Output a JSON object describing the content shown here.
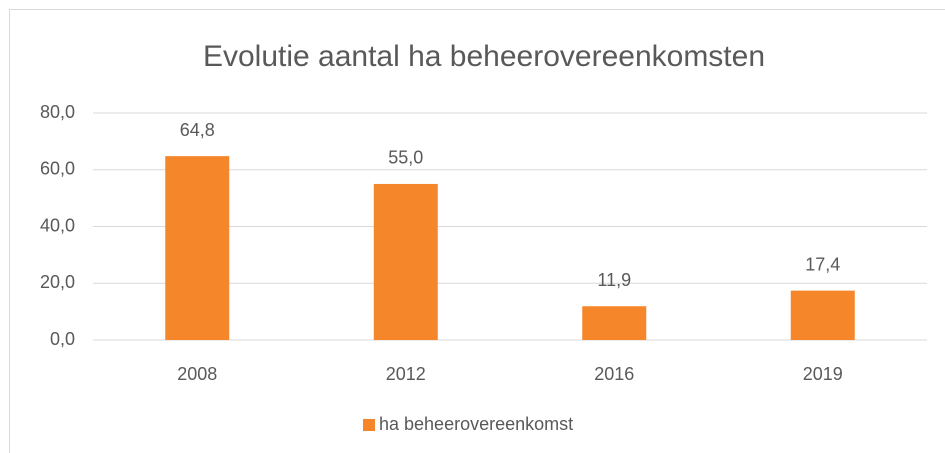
{
  "chart_data": {
    "type": "bar",
    "title": "Evolutie aantal ha beheerovereenkomsten",
    "categories": [
      "2008",
      "2012",
      "2016",
      "2019"
    ],
    "series": [
      {
        "name": "ha beheerovereenkomst",
        "color": "#f5862a",
        "values": [
          64.8,
          55.0,
          11.9,
          17.4
        ],
        "value_labels": [
          "64,8",
          "55,0",
          "11,9",
          "17,4"
        ]
      }
    ],
    "ylim": [
      0,
      80
    ],
    "yticks": [
      {
        "value": 0,
        "label": "0,0"
      },
      {
        "value": 20,
        "label": "20,0"
      },
      {
        "value": 40,
        "label": "40,0"
      },
      {
        "value": 60,
        "label": "60,0"
      },
      {
        "value": 80,
        "label": "80,0"
      }
    ],
    "grid": true,
    "legend": "bottom"
  }
}
